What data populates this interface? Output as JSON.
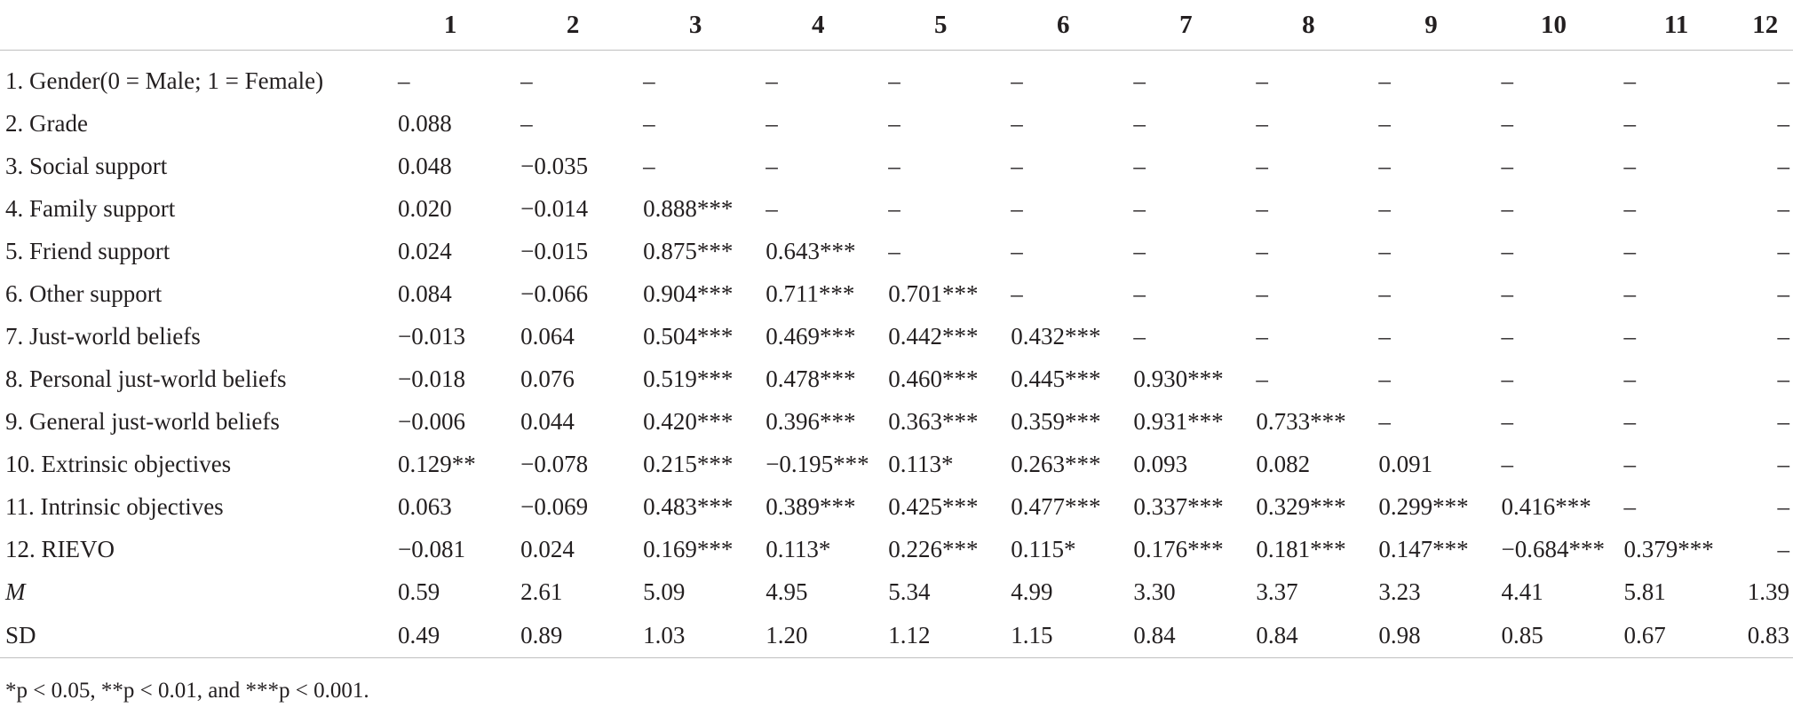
{
  "columns": [
    "1",
    "2",
    "3",
    "4",
    "5",
    "6",
    "7",
    "8",
    "9",
    "10",
    "11",
    "12"
  ],
  "rows": [
    {
      "label": "1. Gender(0 = Male; 1 = Female)",
      "values": [
        "–",
        "–",
        "–",
        "–",
        "–",
        "–",
        "–",
        "–",
        "–",
        "–",
        "–",
        "–"
      ]
    },
    {
      "label": "2. Grade",
      "values": [
        "0.088",
        "–",
        "–",
        "–",
        "–",
        "–",
        "–",
        "–",
        "–",
        "–",
        "–",
        "–"
      ]
    },
    {
      "label": "3. Social support",
      "values": [
        "0.048",
        "−0.035",
        "–",
        "–",
        "–",
        "–",
        "–",
        "–",
        "–",
        "–",
        "–",
        "–"
      ]
    },
    {
      "label": "4. Family support",
      "values": [
        "0.020",
        "−0.014",
        "0.888***",
        "–",
        "–",
        "–",
        "–",
        "–",
        "–",
        "–",
        "–",
        "–"
      ]
    },
    {
      "label": "5. Friend support",
      "values": [
        "0.024",
        "−0.015",
        "0.875***",
        "0.643***",
        "–",
        "–",
        "–",
        "–",
        "–",
        "–",
        "–",
        "–"
      ]
    },
    {
      "label": "6. Other support",
      "values": [
        "0.084",
        "−0.066",
        "0.904***",
        "0.711***",
        "0.701***",
        "–",
        "–",
        "–",
        "–",
        "–",
        "–",
        "–"
      ]
    },
    {
      "label": "7. Just-world beliefs",
      "values": [
        "−0.013",
        "0.064",
        "0.504***",
        "0.469***",
        "0.442***",
        "0.432***",
        "–",
        "–",
        "–",
        "–",
        "–",
        "–"
      ]
    },
    {
      "label": "8. Personal just-world beliefs",
      "values": [
        "−0.018",
        "0.076",
        "0.519***",
        "0.478***",
        "0.460***",
        "0.445***",
        "0.930***",
        "–",
        "–",
        "–",
        "–",
        "–"
      ]
    },
    {
      "label": "9. General just-world beliefs",
      "values": [
        "−0.006",
        "0.044",
        "0.420***",
        "0.396***",
        "0.363***",
        "0.359***",
        "0.931***",
        "0.733***",
        "–",
        "–",
        "–",
        "–"
      ]
    },
    {
      "label": "10. Extrinsic objectives",
      "values": [
        "0.129**",
        "−0.078",
        "0.215***",
        "−0.195***",
        "0.113*",
        "0.263***",
        "0.093",
        "0.082",
        "0.091",
        "–",
        "–",
        "–"
      ]
    },
    {
      "label": "11. Intrinsic objectives",
      "values": [
        "0.063",
        "−0.069",
        "0.483***",
        "0.389***",
        "0.425***",
        "0.477***",
        "0.337***",
        "0.329***",
        "0.299***",
        "0.416***",
        "–",
        "–"
      ]
    },
    {
      "label": "12. RIEVO",
      "values": [
        "−0.081",
        "0.024",
        "0.169***",
        "0.113*",
        "0.226***",
        "0.115*",
        "0.176***",
        "0.181***",
        "0.147***",
        "−0.684***",
        "0.379***",
        "–"
      ]
    },
    {
      "label": "M",
      "values": [
        "0.59",
        "2.61",
        "5.09",
        "4.95",
        "5.34",
        "4.99",
        "3.30",
        "3.37",
        "3.23",
        "4.41",
        "5.81",
        "1.39"
      ]
    },
    {
      "label": "SD",
      "values": [
        "0.49",
        "0.89",
        "1.03",
        "1.20",
        "1.12",
        "1.15",
        "0.84",
        "0.84",
        "0.98",
        "0.85",
        "0.67",
        "0.83"
      ]
    }
  ],
  "footnote": "*p < 0.05, **p < 0.01, and ***p < 0.001."
}
